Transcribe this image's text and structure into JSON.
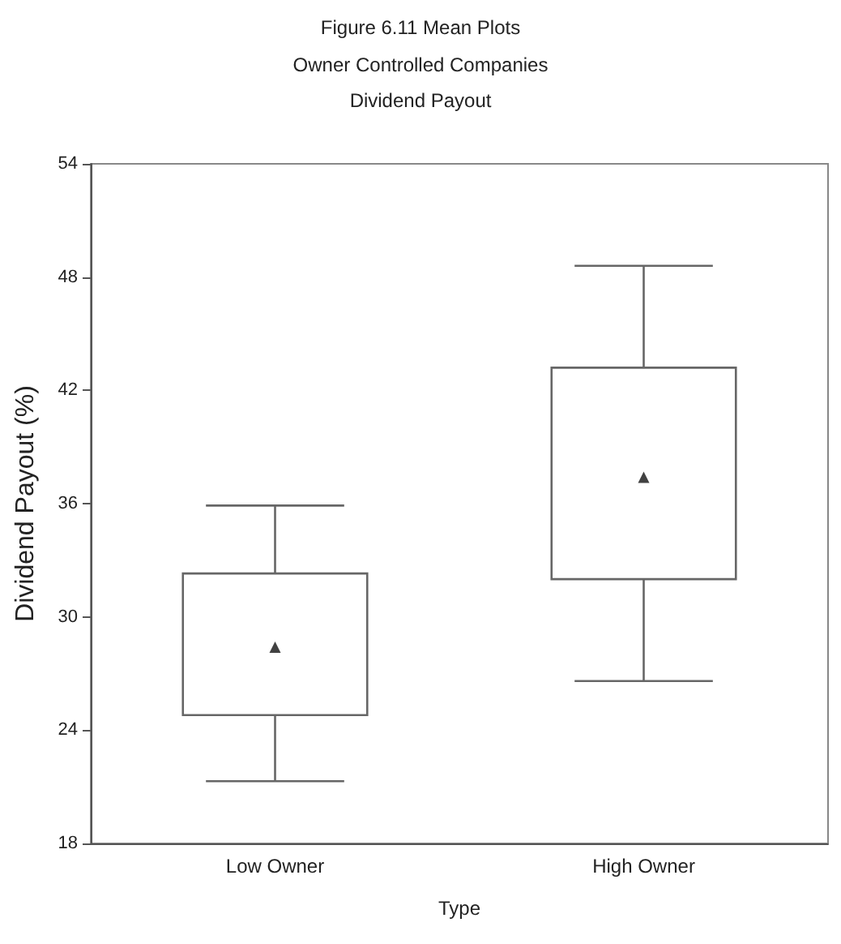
{
  "chart_data": {
    "type": "box",
    "title": "Figure 6.11 Mean Plots",
    "subtitle": "Owner Controlled Companies\nDividend Payout",
    "xlabel": "Type",
    "ylabel": "Dividend Payout (%)",
    "categories": [
      "Low Owner",
      "High Owner"
    ],
    "boxes": [
      {
        "low": 21.3,
        "q1": 24.8,
        "q3": 32.3,
        "high": 35.9,
        "mean": 28.4
      },
      {
        "low": 26.6,
        "q1": 32.0,
        "q3": 43.2,
        "high": 48.6,
        "mean": 37.4
      }
    ],
    "color": "#666666",
    "marker": "triangle",
    "ylim": [
      18,
      54
    ],
    "yticks": [
      18,
      24,
      30,
      36,
      42,
      48,
      54
    ],
    "grid": false
  }
}
